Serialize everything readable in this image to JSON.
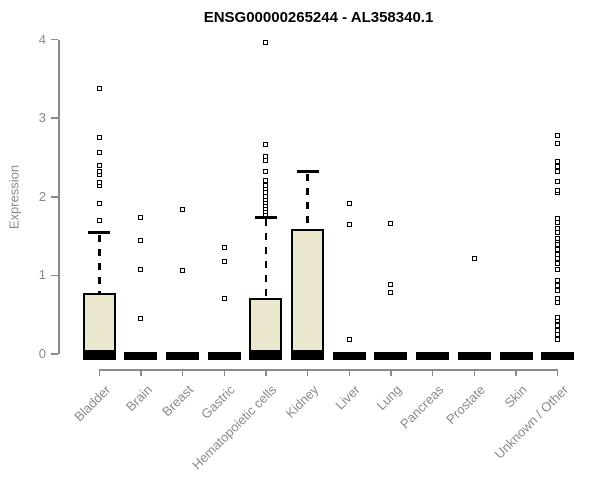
{
  "chart": {
    "title": "ENSG00000265244 - AL358340.1",
    "ylabel": "Expression"
  },
  "chart_data": {
    "type": "boxplot",
    "title": "ENSG00000265244 - AL358340.1",
    "xlabel": "",
    "ylabel": "Expression",
    "ylim": [
      0,
      4
    ],
    "y_ticks": [
      0,
      1,
      2,
      3,
      4
    ],
    "grid": false,
    "legend": "none",
    "box_fill_color": "#ECE7CF",
    "axis_color": "#8a8a8a",
    "line_color": "#000000",
    "categories": [
      "Bladder",
      "Brain",
      "Breast",
      "Gastric",
      "Hematopoietic cells",
      "Kidney",
      "Liver",
      "Lung",
      "Pancreas",
      "Prostate",
      "Skin",
      "Unknown / Other"
    ],
    "series": [
      {
        "label": "Bladder",
        "q1": 0,
        "median": 0,
        "q3": 0.78,
        "whisker_low": 0,
        "whisker_high": 1.54,
        "outliers": [
          1.7,
          1.92,
          2.15,
          2.18,
          2.28,
          2.32,
          2.4,
          2.56,
          2.75,
          3.38
        ]
      },
      {
        "label": "Brain",
        "q1": 0,
        "median": 0,
        "q3": 0,
        "whisker_low": 0,
        "whisker_high": 0,
        "outliers": [
          0.45,
          1.08,
          1.44,
          1.74
        ]
      },
      {
        "label": "Breast",
        "q1": 0,
        "median": 0,
        "q3": 0,
        "whisker_low": 0,
        "whisker_high": 0,
        "outliers": [
          1.06,
          1.84
        ]
      },
      {
        "label": "Gastric",
        "q1": 0,
        "median": 0,
        "q3": 0,
        "whisker_low": 0,
        "whisker_high": 0,
        "outliers": [
          0.7,
          1.18,
          1.36
        ]
      },
      {
        "label": "Hematopoietic cells",
        "q1": 0,
        "median": 0,
        "q3": 0.71,
        "whisker_low": 0,
        "whisker_high": 1.74,
        "outliers": [
          1.78,
          1.81,
          1.85,
          1.89,
          1.93,
          1.97,
          2.01,
          2.05,
          2.1,
          2.15,
          2.21,
          2.32,
          2.46,
          2.51,
          2.66,
          3.96
        ]
      },
      {
        "label": "Kidney",
        "q1": 0,
        "median": 0,
        "q3": 1.59,
        "whisker_low": 0,
        "whisker_high": 2.32,
        "outliers": []
      },
      {
        "label": "Liver",
        "q1": 0,
        "median": 0,
        "q3": 0,
        "whisker_low": 0,
        "whisker_high": 0,
        "outliers": [
          0.18,
          1.65,
          1.92
        ]
      },
      {
        "label": "Lung",
        "q1": 0,
        "median": 0,
        "q3": 0,
        "whisker_low": 0,
        "whisker_high": 0,
        "outliers": [
          0.78,
          0.88,
          1.66
        ]
      },
      {
        "label": "Pancreas",
        "q1": 0,
        "median": 0,
        "q3": 0,
        "whisker_low": 0,
        "whisker_high": 0,
        "outliers": []
      },
      {
        "label": "Prostate",
        "q1": 0,
        "median": 0,
        "q3": 0,
        "whisker_low": 0,
        "whisker_high": 0,
        "outliers": [
          1.21
        ]
      },
      {
        "label": "Skin",
        "q1": 0,
        "median": 0,
        "q3": 0,
        "whisker_low": 0,
        "whisker_high": 0,
        "outliers": []
      },
      {
        "label": "Unknown / Other",
        "q1": 0,
        "median": 0,
        "q3": 0,
        "whisker_low": 0,
        "whisker_high": 0,
        "outliers": [
          0.19,
          0.25,
          0.3,
          0.36,
          0.42,
          0.47,
          0.65,
          0.71,
          0.81,
          0.87,
          0.94,
          1.07,
          1.15,
          1.22,
          1.27,
          1.33,
          1.39,
          1.44,
          1.47,
          1.54,
          1.6,
          1.67,
          1.73,
          2.05,
          2.08,
          2.2,
          2.32,
          2.38,
          2.45,
          2.68,
          2.78
        ]
      }
    ]
  }
}
